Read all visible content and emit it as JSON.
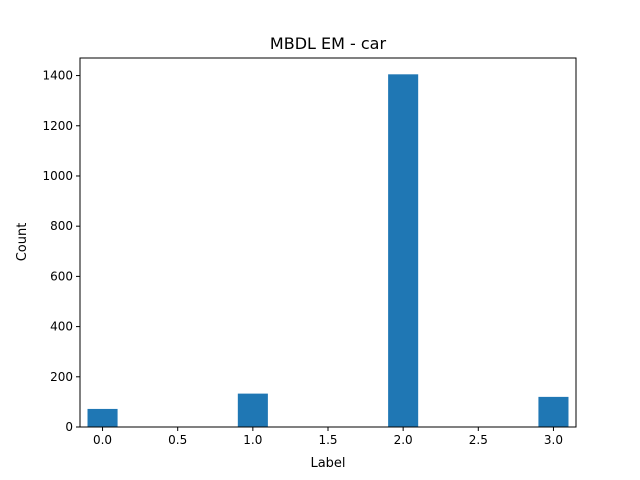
{
  "chart_data": {
    "type": "bar",
    "title": "MBDL EM - car",
    "xlabel": "Label",
    "ylabel": "Count",
    "xlim": [
      -0.15,
      3.15
    ],
    "ylim": [
      0,
      1470
    ],
    "bar_width": 0.2,
    "x": [
      0.0,
      1.0,
      2.0,
      3.0
    ],
    "values": [
      72,
      133,
      1405,
      120
    ],
    "xticks": [
      0.0,
      0.5,
      1.0,
      1.5,
      2.0,
      2.5,
      3.0
    ],
    "xtick_labels": [
      "0.0",
      "0.5",
      "1.0",
      "1.5",
      "2.0",
      "2.5",
      "3.0"
    ],
    "yticks": [
      0,
      200,
      400,
      600,
      800,
      1000,
      1200,
      1400
    ],
    "ytick_labels": [
      "0",
      "200",
      "400",
      "600",
      "800",
      "1000",
      "1200",
      "1400"
    ],
    "bar_color": "#1f77b4",
    "grid": false,
    "legend": "none"
  }
}
